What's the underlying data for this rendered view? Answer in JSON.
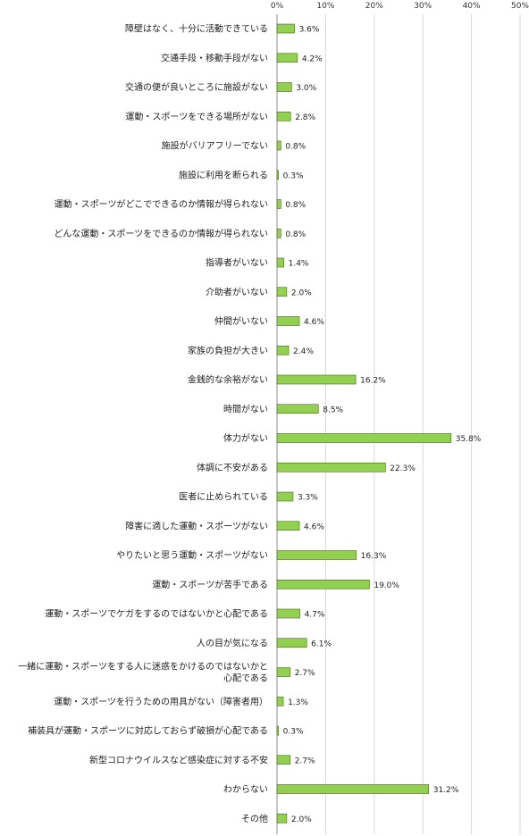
{
  "chart_data": {
    "type": "bar",
    "orientation": "horizontal",
    "title": "",
    "xlabel": "",
    "ylabel": "",
    "xlim": [
      0,
      50
    ],
    "ticks": [
      "0%",
      "10%",
      "20%",
      "30%",
      "40%",
      "50%"
    ],
    "grid": true,
    "legend": "none",
    "bar_color": "#92d050",
    "bar_edge": "#4f6228",
    "categories": [
      "障壁はなく、十分に活動できている",
      "交通手段・移動手段がない",
      "交通の便が良いところに施設がない",
      "運動・スポーツをできる場所がない",
      "施設がバリアフリーでない",
      "施設に利用を断られる",
      "運動・スポーツがどこでできるのか情報が得られない",
      "どんな運動・スポーツをできるのか情報が得られない",
      "指導者がいない",
      "介助者がいない",
      "仲間がいない",
      "家族の負担が大きい",
      "金銭的な余裕がない",
      "時間がない",
      "体力がない",
      "体調に不安がある",
      "医者に止められている",
      "障害に適した運動・スポーツがない",
      "やりたいと思う運動・スポーツがない",
      "運動・スポーツが苦手である",
      "運動・スポーツでケガをするのではないかと心配である",
      "人の目が気になる",
      "一緒に運動・スポーツをする人に迷惑をかけるのではないかと\n心配である",
      "運動・スポーツを行うための用具がない（障害者用）",
      "補装具が運動・スポーツに対応しておらず破損が心配である",
      "新型コロナウイルスなど感染症に対する不安",
      "わからない",
      "その他"
    ],
    "values": [
      3.6,
      4.2,
      3.0,
      2.8,
      0.8,
      0.3,
      0.8,
      0.8,
      1.4,
      2.0,
      4.6,
      2.4,
      16.2,
      8.5,
      35.8,
      22.3,
      3.3,
      4.6,
      16.3,
      19.0,
      4.7,
      6.1,
      2.7,
      1.3,
      0.3,
      2.7,
      31.2,
      2.0
    ],
    "value_labels": [
      "3.6%",
      "4.2%",
      "3.0%",
      "2.8%",
      "0.8%",
      "0.3%",
      "0.8%",
      "0.8%",
      "1.4%",
      "2.0%",
      "4.6%",
      "2.4%",
      "16.2%",
      "8.5%",
      "35.8%",
      "22.3%",
      "3.3%",
      "4.6%",
      "16.3%",
      "19.0%",
      "4.7%",
      "6.1%",
      "2.7%",
      "1.3%",
      "0.3%",
      "2.7%",
      "31.2%",
      "2.0%"
    ]
  }
}
